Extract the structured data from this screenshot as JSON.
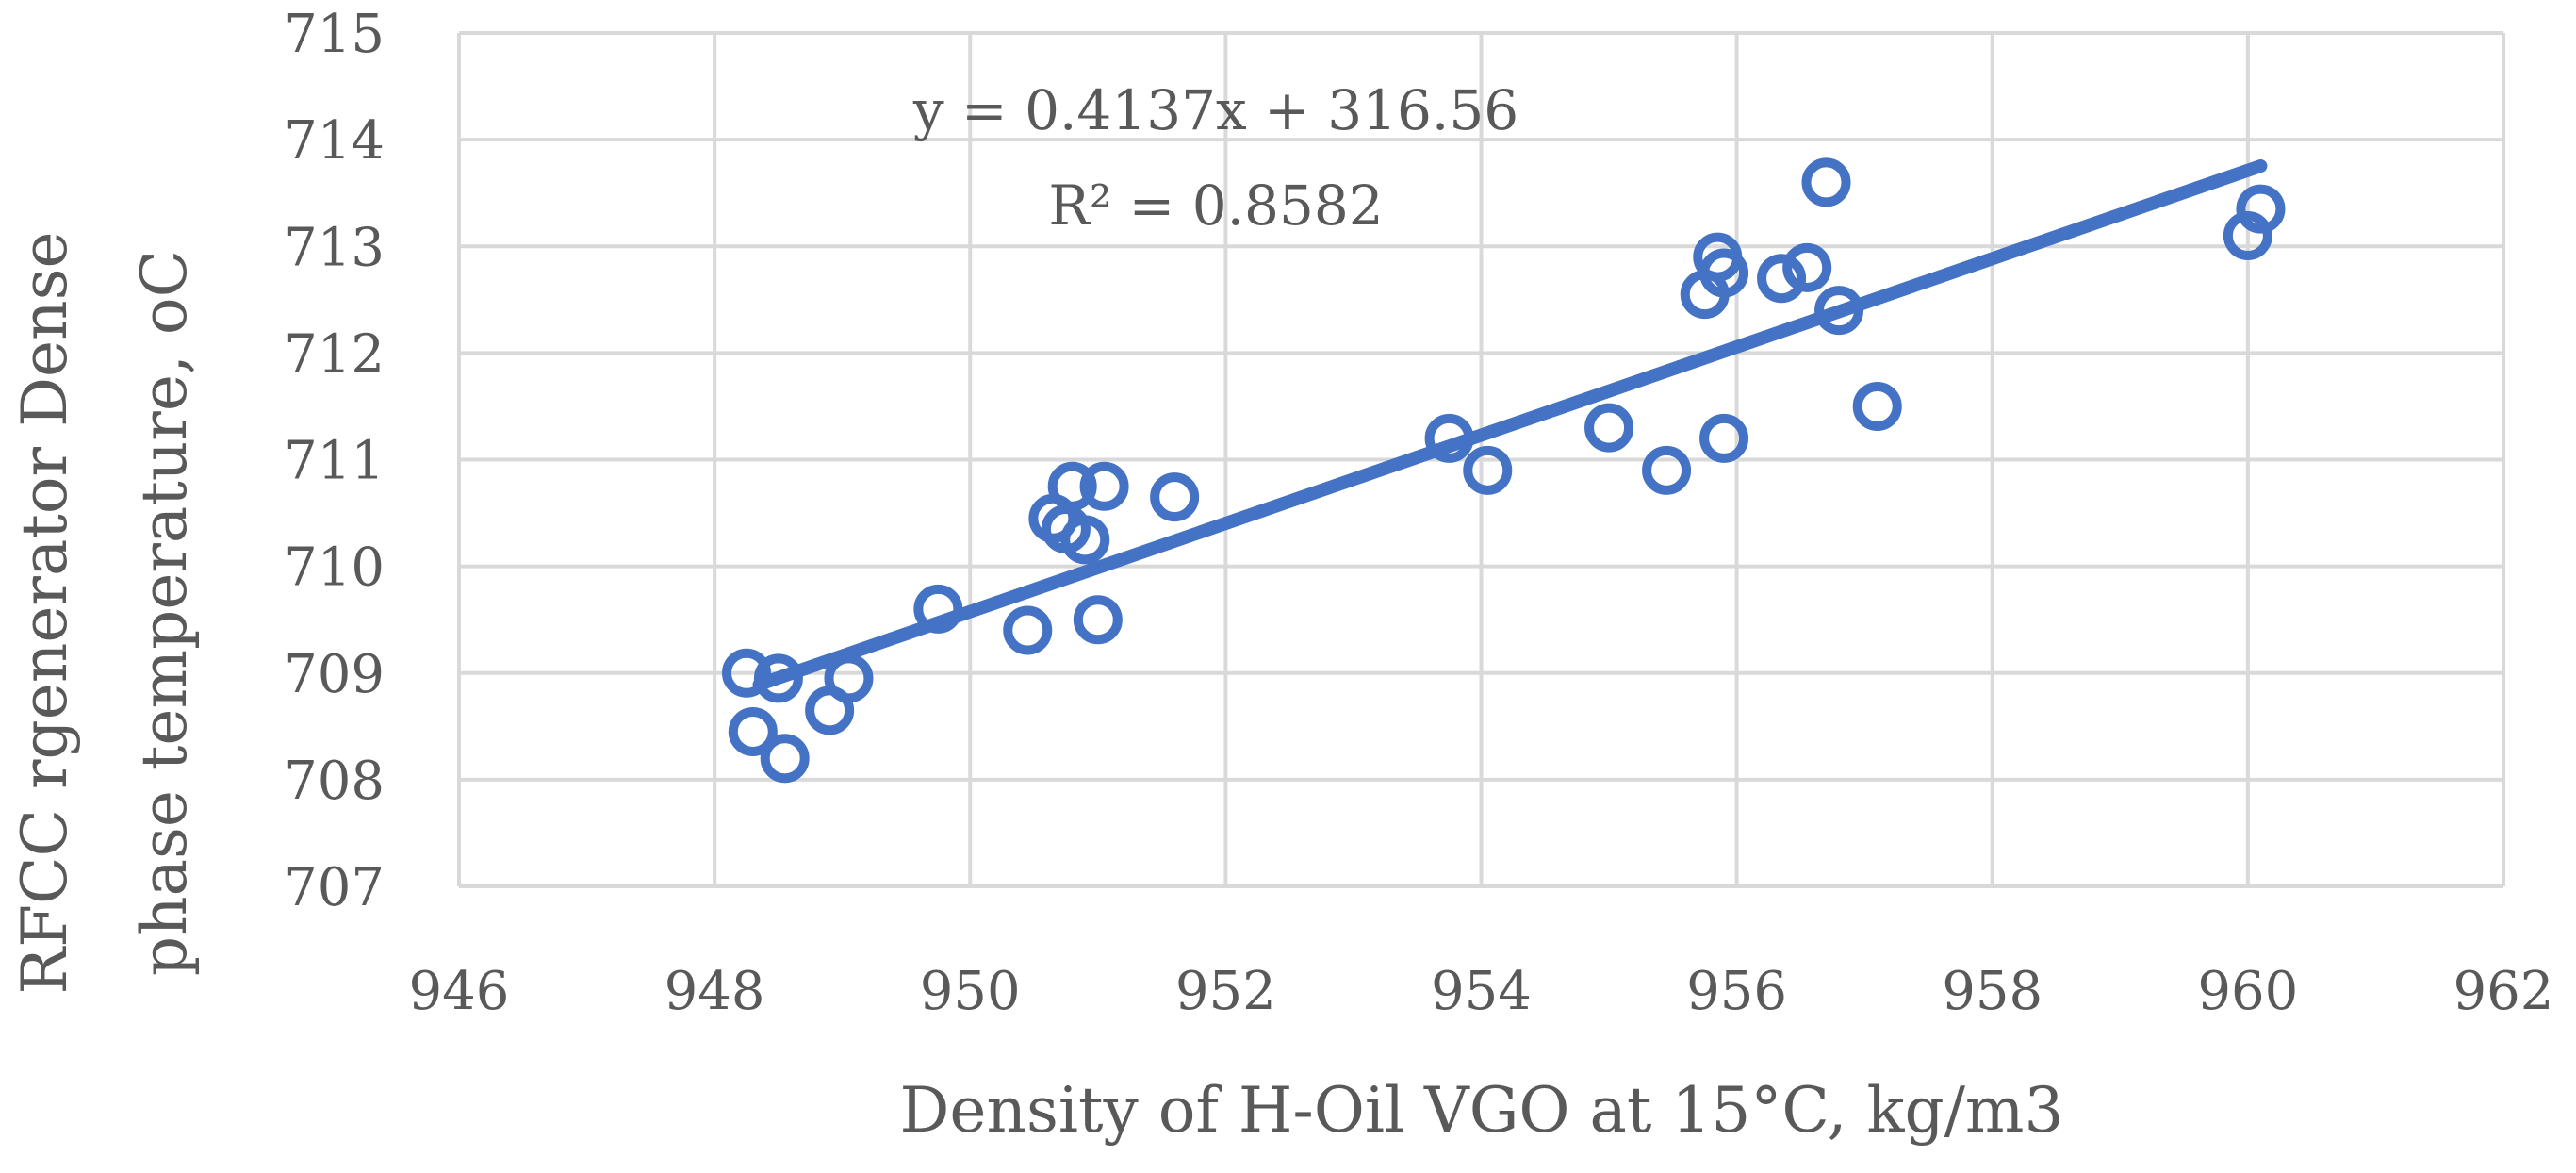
{
  "chart_data": {
    "type": "scatter",
    "xlabel": "Density of H-Oil VGO at 15°C, kg/m3",
    "ylabel_lines": [
      "RFCC rgenerator Dense",
      "phase temperature, oC"
    ],
    "xlim": [
      946,
      962
    ],
    "ylim": [
      707,
      715
    ],
    "x_ticks": [
      946,
      948,
      950,
      952,
      954,
      956,
      958,
      960,
      962
    ],
    "y_ticks": [
      707,
      708,
      709,
      710,
      711,
      712,
      713,
      714,
      715
    ],
    "grid": true,
    "series": [
      {
        "name": "data",
        "marker": "circle-open",
        "color": "#4472C4",
        "points": [
          [
            948.25,
            709.0
          ],
          [
            948.3,
            708.45
          ],
          [
            948.5,
            708.95
          ],
          [
            948.55,
            708.2
          ],
          [
            948.9,
            708.65
          ],
          [
            949.05,
            708.95
          ],
          [
            949.75,
            709.6
          ],
          [
            950.45,
            709.4
          ],
          [
            950.65,
            710.45
          ],
          [
            950.75,
            710.35
          ],
          [
            950.8,
            710.75
          ],
          [
            950.9,
            710.25
          ],
          [
            951.0,
            709.5
          ],
          [
            951.05,
            710.75
          ],
          [
            951.6,
            710.65
          ],
          [
            953.75,
            711.2
          ],
          [
            954.05,
            710.9
          ],
          [
            955.0,
            711.3
          ],
          [
            955.45,
            710.9
          ],
          [
            955.75,
            712.55
          ],
          [
            955.85,
            712.9
          ],
          [
            955.9,
            712.75
          ],
          [
            955.9,
            711.2
          ],
          [
            956.35,
            712.7
          ],
          [
            956.55,
            712.8
          ],
          [
            956.7,
            713.6
          ],
          [
            956.8,
            712.4
          ],
          [
            957.1,
            711.5
          ],
          [
            960.0,
            713.1
          ],
          [
            960.1,
            713.35
          ]
        ]
      }
    ],
    "trendline": {
      "slope": 0.4137,
      "intercept": 316.56,
      "x_start": 948.35,
      "x_end": 960.1,
      "equation": "y = 0.4137x + 316.56",
      "r_squared": "R² = 0.8582",
      "color": "#4472C4"
    }
  }
}
